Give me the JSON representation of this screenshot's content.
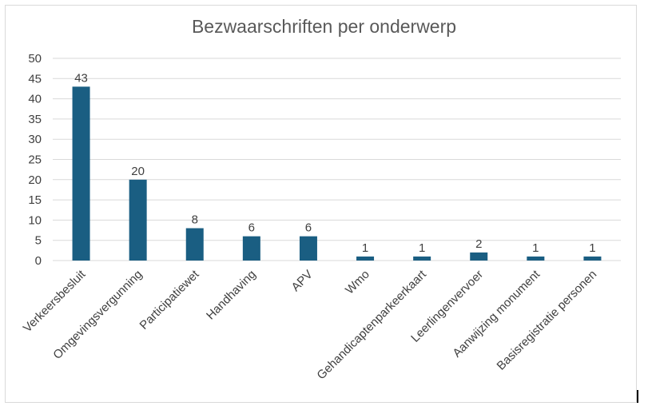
{
  "chart_data": {
    "type": "bar",
    "title": "Bezwaarschriften per onderwerp",
    "xlabel": "",
    "ylabel": "",
    "categories": [
      "Verkeersbesluit",
      "Omgevingsvergunning",
      "Participatiewet",
      "Handhaving",
      "APV",
      "Wmo",
      "Gehandicaptenparkeerkaart",
      "Leerlingenvervoer",
      "Aanwijzing monument",
      "Basisregistratie personen"
    ],
    "values": [
      43,
      20,
      8,
      6,
      6,
      1,
      1,
      2,
      1,
      1
    ],
    "ylim": [
      0,
      50
    ],
    "yticks": [
      0,
      5,
      10,
      15,
      20,
      25,
      30,
      35,
      40,
      45,
      50
    ],
    "grid": true,
    "legend": "none",
    "bar_color": "#1a5e82",
    "grid_color": "#d9d9d9"
  }
}
